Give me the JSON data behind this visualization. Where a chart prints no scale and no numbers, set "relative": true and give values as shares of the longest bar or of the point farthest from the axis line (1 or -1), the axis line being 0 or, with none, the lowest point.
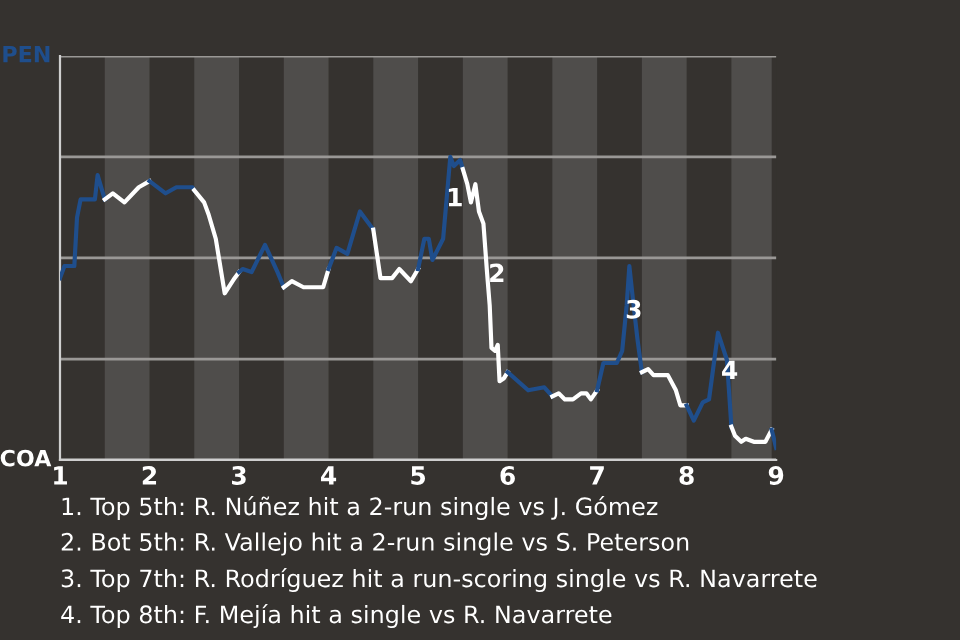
{
  "chart_data": {
    "type": "line",
    "relative": true,
    "xlim": [
      1,
      9
    ],
    "xticks": [
      1,
      2,
      3,
      4,
      5,
      6,
      7,
      8,
      9
    ],
    "marker": "none",
    "line_style": "solid",
    "ref_lines": [
      {
        "axis": "y",
        "value": 0,
        "label": "COA",
        "color": "#cfcfcf"
      },
      {
        "axis": "y",
        "value": 0.333,
        "label": null,
        "color": "#9a9896"
      },
      {
        "axis": "y",
        "value": 0.667,
        "label": null,
        "color": "#9a9896"
      },
      {
        "axis": "y",
        "value": 1,
        "label": null,
        "color": "#9a9896"
      },
      {
        "axis": "y",
        "value": 1.333,
        "label": "PEN",
        "color": "#9a9896"
      }
    ],
    "bands": [
      {
        "axis": "x",
        "from": 1.5,
        "to": 2,
        "color": "#4f4d4b"
      },
      {
        "axis": "x",
        "from": 2.5,
        "to": 3,
        "color": "#4f4d4b"
      },
      {
        "axis": "x",
        "from": 3.5,
        "to": 4,
        "color": "#4f4d4b"
      },
      {
        "axis": "x",
        "from": 4.5,
        "to": 5,
        "color": "#4f4d4b"
      },
      {
        "axis": "x",
        "from": 5.5,
        "to": 6,
        "color": "#4f4d4b"
      },
      {
        "axis": "x",
        "from": 6.5,
        "to": 7,
        "color": "#4f4d4b"
      },
      {
        "axis": "x",
        "from": 7.5,
        "to": 8,
        "color": "#4f4d4b"
      },
      {
        "axis": "x",
        "from": 8.5,
        "to": 8.95,
        "color": "#4f4d4b"
      }
    ],
    "series": [
      {
        "color": "#1f4e8c",
        "x": [
          1.0,
          1.05,
          1.16,
          1.19,
          1.23,
          1.39,
          1.42,
          1.5
        ],
        "values": [
          0.6,
          0.64,
          0.64,
          0.8,
          0.86,
          0.86,
          0.94,
          0.86
        ]
      },
      {
        "color": "#ffffff",
        "x": [
          1.5,
          1.59,
          1.72,
          1.88,
          2.0
        ],
        "values": [
          0.86,
          0.88,
          0.85,
          0.9,
          0.92
        ]
      },
      {
        "color": "#1f4e8c",
        "x": [
          2.0,
          2.18,
          2.3,
          2.48,
          2.5
        ],
        "values": [
          0.92,
          0.88,
          0.9,
          0.9,
          0.89
        ]
      },
      {
        "color": "#ffffff",
        "x": [
          2.5,
          2.61,
          2.66,
          2.74,
          2.84,
          2.95,
          3.0
        ],
        "values": [
          0.89,
          0.85,
          0.81,
          0.73,
          0.55,
          0.6,
          0.62
        ]
      },
      {
        "color": "#1f4e8c",
        "x": [
          3.0,
          3.04,
          3.14,
          3.29,
          3.43,
          3.5
        ],
        "values": [
          0.62,
          0.63,
          0.62,
          0.71,
          0.62,
          0.57
        ]
      },
      {
        "color": "#ffffff",
        "x": [
          3.5,
          3.59,
          3.72,
          3.94,
          4.0
        ],
        "values": [
          0.57,
          0.59,
          0.57,
          0.57,
          0.63
        ]
      },
      {
        "color": "#1f4e8c",
        "x": [
          4.0,
          4.09,
          4.21,
          4.35,
          4.5
        ],
        "values": [
          0.63,
          0.7,
          0.68,
          0.82,
          0.76
        ]
      },
      {
        "color": "#ffffff",
        "x": [
          4.5,
          4.58,
          4.71,
          4.79,
          4.92,
          5.0
        ],
        "values": [
          0.76,
          0.6,
          0.6,
          0.63,
          0.59,
          0.63
        ]
      },
      {
        "color": "#1f4e8c",
        "x": [
          5.0,
          5.07,
          5.12,
          5.16,
          5.28,
          5.36,
          5.4,
          5.47,
          5.5
        ],
        "values": [
          0.63,
          0.73,
          0.73,
          0.66,
          0.73,
          1.0,
          0.97,
          0.99,
          0.96
        ]
      },
      {
        "color": "#ffffff",
        "x": [
          5.5,
          5.55,
          5.59,
          5.64,
          5.68,
          5.73,
          5.77,
          5.8,
          5.82,
          5.86,
          5.89,
          5.91,
          5.96,
          6.0
        ],
        "values": [
          0.96,
          0.91,
          0.85,
          0.91,
          0.82,
          0.78,
          0.62,
          0.51,
          0.37,
          0.36,
          0.38,
          0.26,
          0.27,
          0.29
        ]
      },
      {
        "color": "#1f4e8c",
        "x": [
          6.0,
          6.23,
          6.41,
          6.5
        ],
        "values": [
          0.29,
          0.23,
          0.24,
          0.21
        ]
      },
      {
        "color": "#ffffff",
        "x": [
          6.5,
          6.57,
          6.64,
          6.73,
          6.82,
          6.88,
          6.93,
          7.0
        ],
        "values": [
          0.21,
          0.22,
          0.2,
          0.2,
          0.22,
          0.22,
          0.2,
          0.23
        ]
      },
      {
        "color": "#1f4e8c",
        "x": [
          7.0,
          7.07,
          7.22,
          7.28,
          7.33,
          7.36,
          7.4,
          7.45,
          7.5
        ],
        "values": [
          0.23,
          0.32,
          0.32,
          0.36,
          0.51,
          0.64,
          0.53,
          0.4,
          0.29
        ]
      },
      {
        "color": "#ffffff",
        "x": [
          7.5,
          7.57,
          7.63,
          7.79,
          7.88,
          7.93,
          8.0
        ],
        "values": [
          0.29,
          0.3,
          0.28,
          0.28,
          0.23,
          0.18,
          0.18
        ]
      },
      {
        "color": "#1f4e8c",
        "x": [
          8.0,
          8.08,
          8.18,
          8.25,
          8.35,
          8.45,
          8.5
        ],
        "values": [
          0.18,
          0.13,
          0.19,
          0.2,
          0.42,
          0.33,
          0.11
        ]
      },
      {
        "color": "#ffffff",
        "x": [
          8.5,
          8.54,
          8.61,
          8.66,
          8.75,
          8.88,
          8.95
        ],
        "values": [
          0.11,
          0.08,
          0.06,
          0.07,
          0.06,
          0.06,
          0.1
        ]
      },
      {
        "color": "#1f4e8c",
        "x": [
          8.95,
          9.0
        ],
        "values": [
          0.1,
          0.04
        ]
      }
    ],
    "annotations": [
      {
        "text": "1",
        "x": 5.41,
        "y": 0.86
      },
      {
        "text": "2",
        "x": 5.88,
        "y": 0.61
      },
      {
        "text": "3",
        "x": 7.41,
        "y": 0.49
      },
      {
        "text": "4",
        "x": 8.48,
        "y": 0.29
      },
      "1. Top 5th: R. Núñez hit a 2-run single vs J. Gómez",
      "2. Bot 5th: R. Vallejo hit a 2-run single vs S. Peterson",
      "3. Top 7th: R. Rodríguez hit a run-scoring single vs R. Navarrete",
      "4. Top 8th: F. Mejía hit a single vs R. Navarrete"
    ]
  }
}
